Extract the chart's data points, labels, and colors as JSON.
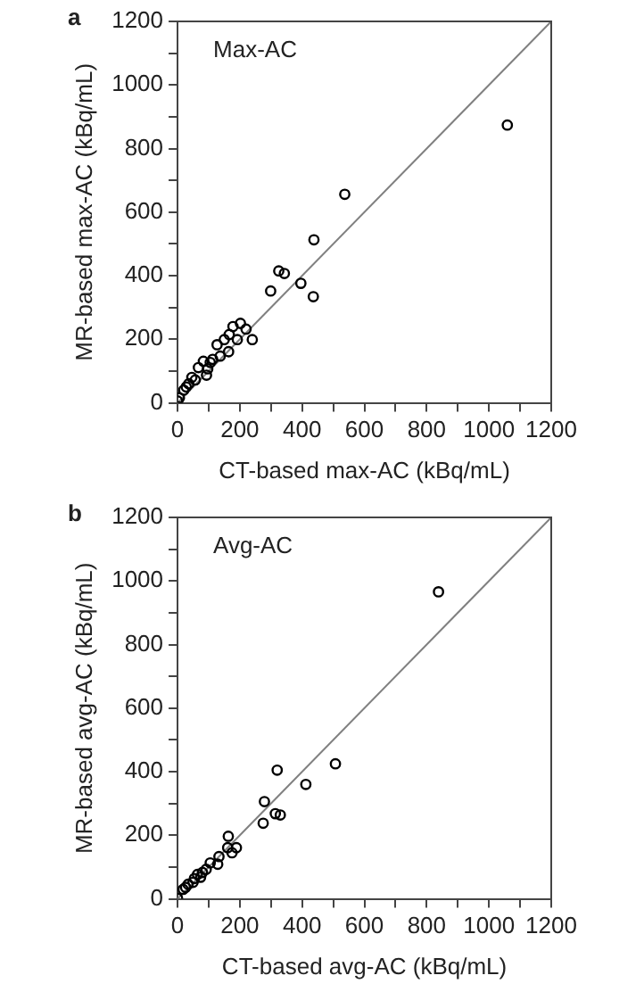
{
  "chart_data": [
    {
      "type": "scatter",
      "title": "a",
      "xlabel": "CT-based max-AC (kBq/mL)",
      "ylabel": "MR-based max-AC (kBq/mL)",
      "annotations": [
        "Max-AC"
      ],
      "grid": false,
      "legend": false,
      "xlim": [
        0,
        1200
      ],
      "ylim": [
        0,
        1200
      ],
      "xticks": [
        0,
        {
          "value": 100,
          "label": null
        },
        200,
        {
          "value": 300,
          "label": null
        },
        400,
        {
          "value": 500,
          "label": null
        },
        600,
        {
          "value": 700,
          "label": null
        },
        800,
        {
          "value": 900,
          "label": null
        },
        1000,
        {
          "value": 1100,
          "label": null
        },
        1200
      ],
      "yticks": [
        0,
        {
          "value": 100,
          "label": null
        },
        200,
        {
          "value": 300,
          "label": null
        },
        400,
        {
          "value": 500,
          "label": null
        },
        600,
        {
          "value": 700,
          "label": null
        },
        800,
        {
          "value": 900,
          "label": null
        },
        1000,
        {
          "value": 1100,
          "label": null
        },
        1200
      ],
      "series": [
        {
          "color": "#000000",
          "marker": "circle",
          "x": [
            1059,
            537,
            438,
            325,
            343,
            396,
            436,
            299,
            240,
            202,
            178,
            220,
            192,
            166,
            150,
            127,
            164,
            137,
            105,
            93,
            83,
            67,
            46,
            36,
            20,
            6,
            0,
            113,
            97,
            57,
            28
          ],
          "values": [
            874,
            656,
            513,
            415,
            407,
            376,
            334,
            352,
            199,
            250,
            240,
            232,
            199,
            215,
            199,
            183,
            161,
            147,
            127,
            87,
            131,
            111,
            80,
            60,
            40,
            16,
            6,
            137,
            107,
            72,
            50
          ]
        },
        {
          "type": "line",
          "color": "#808080",
          "x": [
            0,
            1200
          ],
          "values": [
            0,
            1200
          ]
        }
      ]
    },
    {
      "type": "scatter",
      "title": "b",
      "xlabel": "CT-based avg-AC (kBq/mL)",
      "ylabel": "MR-based avg-AC (kBq/mL)",
      "annotations": [
        "Avg-AC"
      ],
      "grid": false,
      "legend": false,
      "xlim": [
        0,
        1200
      ],
      "ylim": [
        0,
        1200
      ],
      "xticks": [
        0,
        {
          "value": 100,
          "label": null
        },
        200,
        {
          "value": 300,
          "label": null
        },
        400,
        {
          "value": 500,
          "label": null
        },
        600,
        {
          "value": 700,
          "label": null
        },
        800,
        {
          "value": 900,
          "label": null
        },
        1000,
        {
          "value": 1100,
          "label": null
        },
        1200
      ],
      "yticks": [
        0,
        {
          "value": 100,
          "label": null
        },
        200,
        {
          "value": 300,
          "label": null
        },
        400,
        {
          "value": 500,
          "label": null
        },
        600,
        {
          "value": 700,
          "label": null
        },
        800,
        {
          "value": 900,
          "label": null
        },
        1000,
        {
          "value": 1100,
          "label": null
        },
        1200
      ],
      "series": [
        {
          "color": "#000000",
          "marker": "circle",
          "x": [
            838,
            507,
            412,
            320,
            279,
            314,
            330,
            275,
            163,
            189,
            161,
            175,
            133,
            129,
            105,
            92,
            80,
            64,
            54,
            34,
            18,
            0,
            50,
            74,
            26
          ],
          "values": [
            966,
            425,
            360,
            405,
            306,
            268,
            264,
            238,
            197,
            161,
            161,
            145,
            133,
            109,
            113,
            93,
            83,
            77,
            64,
            46,
            30,
            2,
            52,
            68,
            36
          ]
        },
        {
          "type": "line",
          "color": "#808080",
          "x": [
            0,
            1200
          ],
          "values": [
            0,
            1200
          ]
        }
      ]
    }
  ]
}
